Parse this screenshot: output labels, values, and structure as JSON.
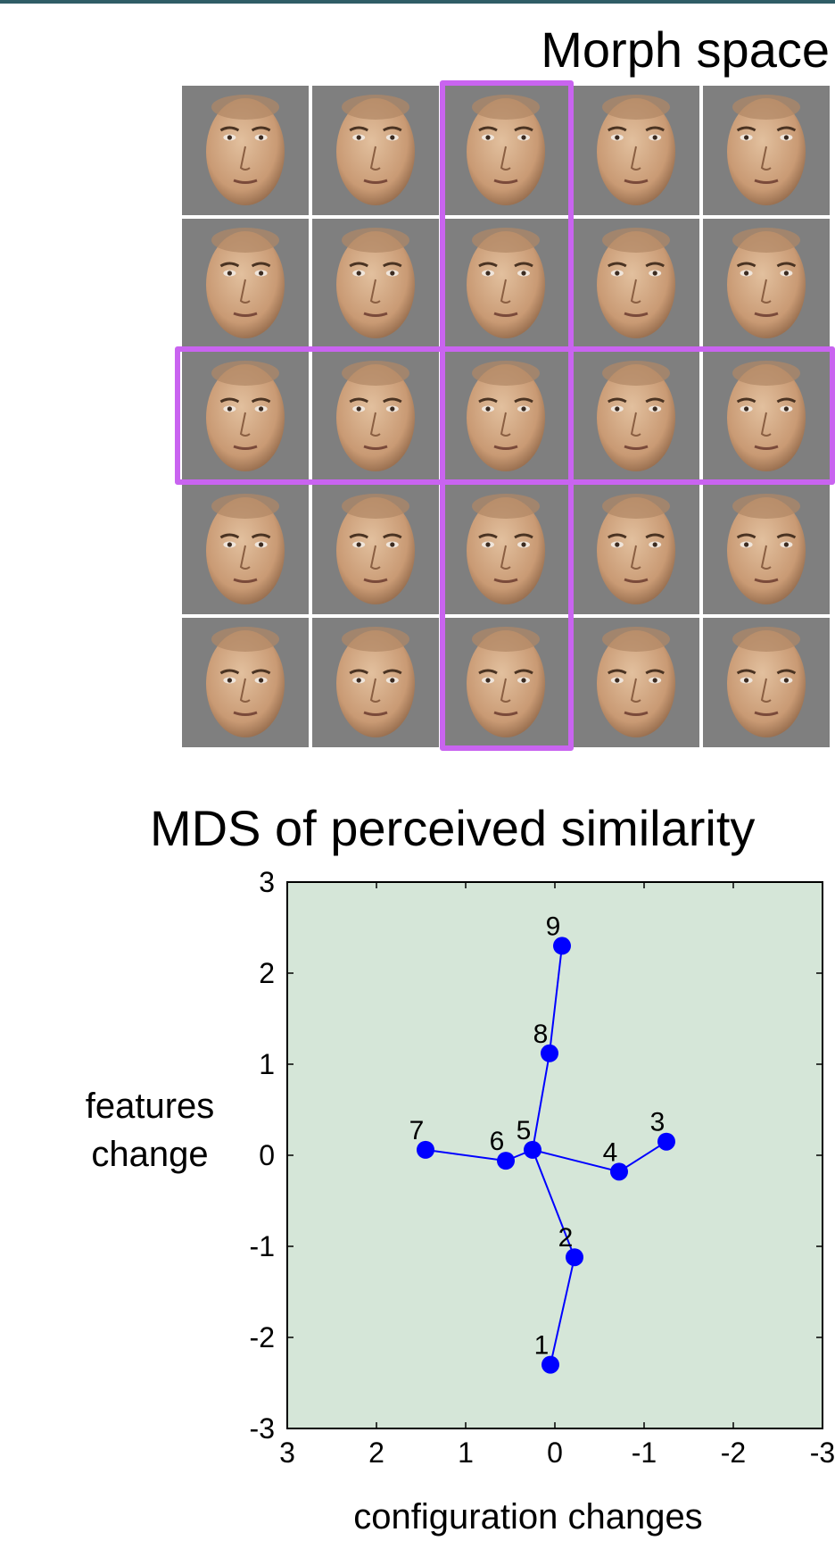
{
  "header": {
    "title": "Morph space"
  },
  "morph_grid": {
    "rows": 5,
    "cols": 5,
    "highlight_color": "#c964f0",
    "highlighted_column": 3,
    "highlighted_row": 3,
    "cell_background": "#7f7f7f"
  },
  "chart_data": {
    "type": "scatter",
    "title": "MDS of perceived similarity",
    "xlabel": "configuration changes",
    "ylabel": "features change",
    "xlim": [
      3,
      -3
    ],
    "ylim": [
      -3,
      3
    ],
    "x_reversed": true,
    "xticks": [
      "3",
      "2",
      "1",
      "0",
      "-1",
      "-2",
      "-3"
    ],
    "yticks": [
      "3",
      "2",
      "1",
      "0",
      "-1",
      "-2",
      "-3"
    ],
    "background": "#d5e6d8",
    "point_color": "#0000ff",
    "points": [
      {
        "label": "1",
        "x": 0.05,
        "y": -2.3
      },
      {
        "label": "2",
        "x": -0.22,
        "y": -1.12
      },
      {
        "label": "3",
        "x": -1.25,
        "y": 0.15
      },
      {
        "label": "4",
        "x": -0.72,
        "y": -0.18
      },
      {
        "label": "5",
        "x": 0.25,
        "y": 0.06
      },
      {
        "label": "6",
        "x": 0.55,
        "y": -0.06
      },
      {
        "label": "7",
        "x": 1.45,
        "y": 0.06
      },
      {
        "label": "8",
        "x": 0.06,
        "y": 1.12
      },
      {
        "label": "9",
        "x": -0.08,
        "y": 2.3
      }
    ],
    "lines": [
      [
        "1",
        "2",
        "5",
        "8",
        "9"
      ],
      [
        "7",
        "6",
        "5",
        "4",
        "3"
      ]
    ]
  }
}
